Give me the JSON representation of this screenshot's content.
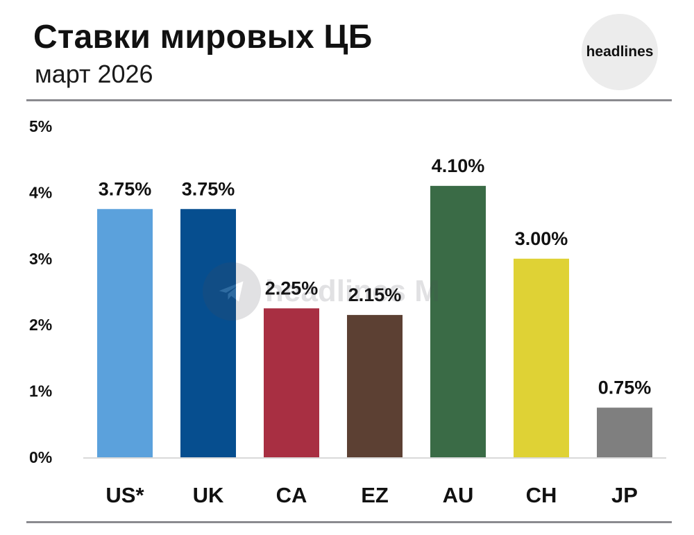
{
  "header": {
    "title": "Ставки мировых ЦБ",
    "subtitle": "март 2026",
    "logo_text": "headlines"
  },
  "watermark": {
    "text": "headlines M",
    "icon": "telegram-icon"
  },
  "colors": {
    "rule": "#8a8a8f",
    "baseline": "#d9d9d9"
  },
  "chart_data": {
    "type": "bar",
    "title": "Ставки мировых ЦБ",
    "subtitle": "март 2026",
    "xlabel": "",
    "ylabel": "",
    "ylim": [
      0,
      5
    ],
    "grid": false,
    "yticks": [
      0,
      1,
      2,
      3,
      4,
      5
    ],
    "ytick_labels": [
      "0%",
      "1%",
      "2%",
      "3%",
      "4%",
      "5%"
    ],
    "categories": [
      "US*",
      "UK",
      "CA",
      "EZ",
      "AU",
      "CH",
      "JP"
    ],
    "values": [
      3.75,
      3.75,
      2.25,
      2.15,
      4.1,
      3.0,
      0.75
    ],
    "value_labels": [
      "3.75%",
      "3.75%",
      "2.25%",
      "2.15%",
      "4.10%",
      "3.00%",
      "0.75%"
    ],
    "bar_colors": [
      "#5ba1dc",
      "#064e8f",
      "#a82f42",
      "#5c4033",
      "#3a6b46",
      "#dfd235",
      "#7f7f7f"
    ]
  }
}
